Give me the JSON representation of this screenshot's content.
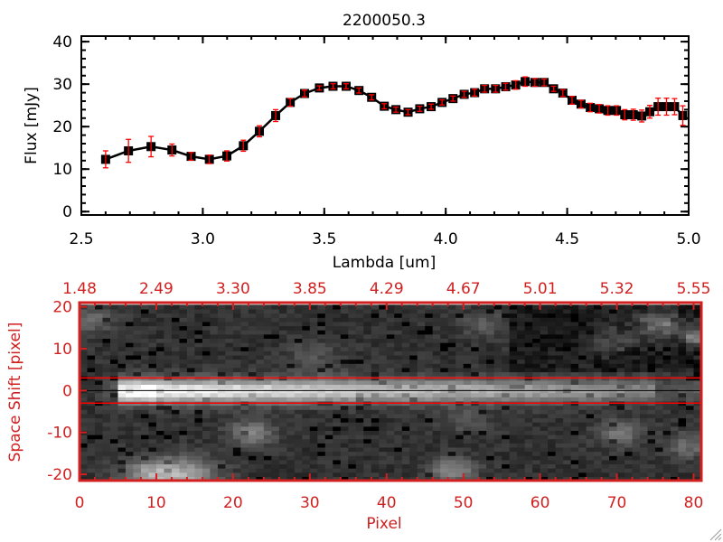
{
  "chart_data": [
    {
      "type": "line",
      "title": "2200050.3",
      "xlabel": "Lambda [um]",
      "ylabel": "Flux [mJy]",
      "xlim": [
        2.5,
        5.0
      ],
      "ylim": [
        -0.8,
        41.3
      ],
      "xticks": [
        "2.5",
        "3.0",
        "3.5",
        "4.0",
        "4.5",
        "5.0"
      ],
      "xtick_values": [
        2.5,
        3.0,
        3.5,
        4.0,
        4.5,
        5.0
      ],
      "yticks": [
        "0",
        "10",
        "20",
        "30",
        "40"
      ],
      "ytick_values": [
        0,
        10,
        20,
        30,
        40
      ],
      "marker_color": "#000000",
      "errorbar_color": "#ff0000",
      "x": [
        2.6,
        2.694,
        2.787,
        2.873,
        2.952,
        3.027,
        3.099,
        3.167,
        3.233,
        3.3,
        3.36,
        3.419,
        3.48,
        3.536,
        3.59,
        3.643,
        3.695,
        3.747,
        3.795,
        3.845,
        3.893,
        3.94,
        3.985,
        4.03,
        4.076,
        4.119,
        4.16,
        4.205,
        4.247,
        4.288,
        4.327,
        4.367,
        4.405,
        4.444,
        4.482,
        4.52,
        4.557,
        4.595,
        4.632,
        4.667,
        4.703,
        4.737,
        4.772,
        4.807,
        4.84,
        4.874,
        4.909,
        4.942,
        4.976
      ],
      "y": [
        12.3,
        14.3,
        15.3,
        14.5,
        13.0,
        12.3,
        13.1,
        15.5,
        18.9,
        22.6,
        25.7,
        27.8,
        29.1,
        29.5,
        29.5,
        28.5,
        26.9,
        24.8,
        24.0,
        23.4,
        24.2,
        24.7,
        25.7,
        26.6,
        27.6,
        28.0,
        28.9,
        28.9,
        29.4,
        29.8,
        30.6,
        30.4,
        30.4,
        28.9,
        27.9,
        26.2,
        25.3,
        24.5,
        24.2,
        23.8,
        23.8,
        22.8,
        22.8,
        22.5,
        23.5,
        24.7,
        24.7,
        24.7,
        22.6
      ],
      "yerr": [
        2.0,
        2.7,
        2.4,
        1.4,
        0.9,
        1.0,
        1.2,
        1.3,
        1.3,
        1.4,
        0.9,
        0.8,
        0.5,
        0.6,
        0.6,
        0.6,
        0.6,
        0.6,
        0.6,
        0.6,
        0.6,
        0.6,
        0.6,
        0.6,
        0.7,
        0.8,
        0.8,
        0.8,
        0.8,
        1.0,
        1.1,
        0.9,
        0.8,
        0.6,
        0.8,
        0.9,
        0.9,
        1.0,
        1.0,
        1.1,
        1.1,
        1.2,
        1.3,
        1.4,
        1.5,
        2.0,
        2.0,
        1.9,
        2.3
      ]
    },
    {
      "type": "heatmap",
      "xlabel": "Pixel",
      "ylabel": "Space Shift [pixel]",
      "xlim": [
        0,
        81
      ],
      "ylim": [
        -21.5,
        21
      ],
      "xticks": [
        "0",
        "10",
        "20",
        "30",
        "40",
        "50",
        "60",
        "70",
        "80"
      ],
      "xtick_values": [
        0,
        10,
        20,
        30,
        40,
        50,
        60,
        70,
        80
      ],
      "top_xticks": [
        "1.48",
        "2.49",
        "3.30",
        "3.85",
        "4.29",
        "4.67",
        "5.01",
        "5.32",
        "5.55"
      ],
      "yticks": [
        "20",
        "10",
        "0",
        "-10",
        "-20"
      ],
      "ytick_values": [
        20,
        10,
        0,
        -10,
        -20
      ],
      "extraction_window": [
        -3,
        3
      ],
      "center_line": 0,
      "axis_color": "#d02020",
      "window_color": "#ff0000",
      "colormap": "grayscale"
    }
  ]
}
